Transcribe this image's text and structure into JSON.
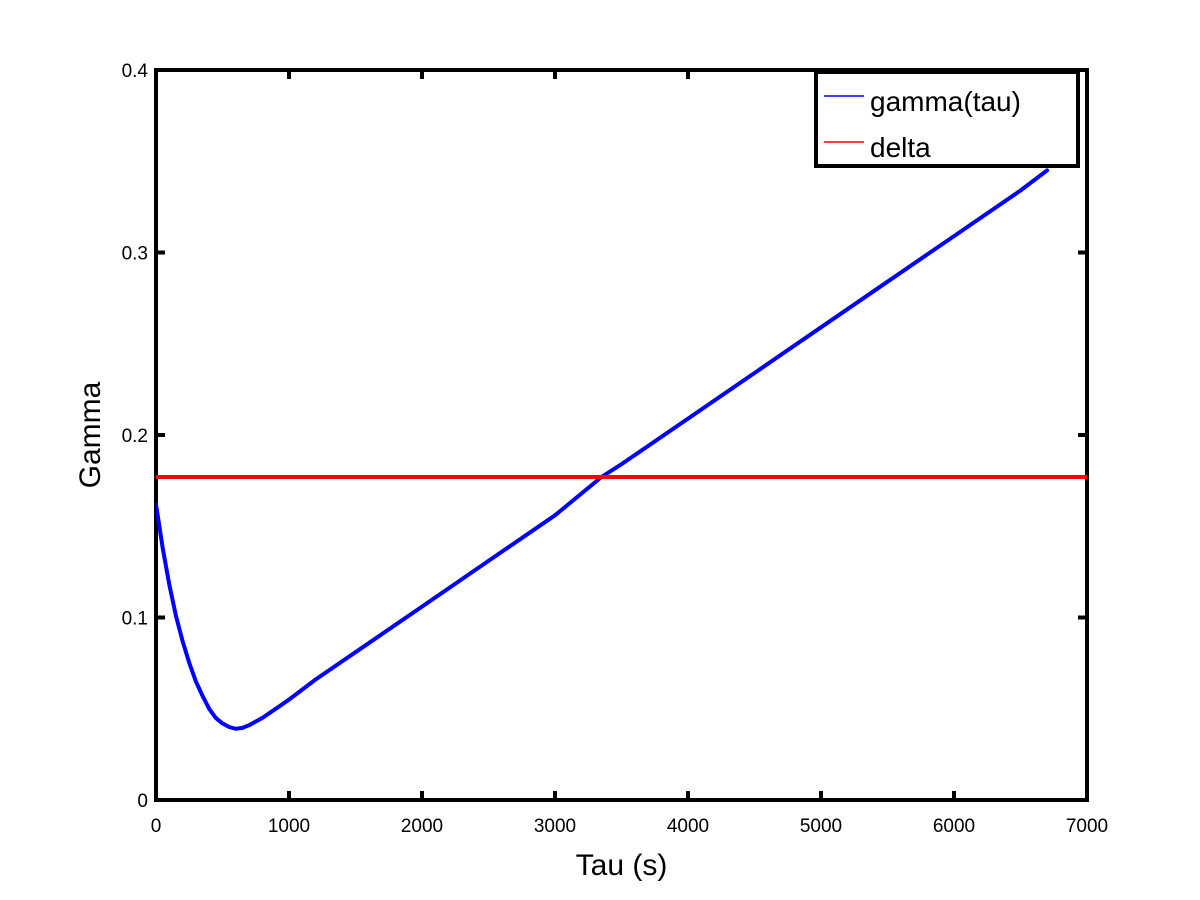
{
  "chart_data": {
    "type": "line",
    "title": "",
    "xlabel": "Tau (s)",
    "ylabel": "Gamma",
    "xlim": [
      0,
      7000
    ],
    "ylim": [
      0,
      0.4
    ],
    "xticks": [
      0,
      1000,
      2000,
      3000,
      4000,
      5000,
      6000,
      7000
    ],
    "yticks": [
      0,
      0.1,
      0.2,
      0.3,
      0.4
    ],
    "xtick_labels": [
      "0",
      "1000",
      "2000",
      "3000",
      "4000",
      "5000",
      "6000",
      "7000"
    ],
    "ytick_labels": [
      "0",
      "0.1",
      "0.2",
      "0.3",
      "0.4"
    ],
    "grid": false,
    "legend_position": "top-right",
    "series": [
      {
        "name": "gamma(tau)",
        "color": "#0000ff",
        "x": [
          0,
          50,
          100,
          150,
          200,
          250,
          300,
          350,
          400,
          450,
          500,
          550,
          600,
          650,
          700,
          800,
          900,
          1000,
          1200,
          1500,
          2000,
          2500,
          3000,
          3350,
          3500,
          4000,
          4500,
          5000,
          5500,
          6000,
          6500,
          6700
        ],
        "y": [
          0.162,
          0.138,
          0.118,
          0.101,
          0.087,
          0.075,
          0.065,
          0.057,
          0.05,
          0.045,
          0.042,
          0.04,
          0.039,
          0.0395,
          0.041,
          0.045,
          0.05,
          0.055,
          0.066,
          0.081,
          0.106,
          0.131,
          0.156,
          0.177,
          0.184,
          0.209,
          0.234,
          0.259,
          0.284,
          0.309,
          0.334,
          0.345
        ]
      },
      {
        "name": "delta",
        "color": "#ff0000",
        "x": [
          0,
          7000
        ],
        "y": [
          0.177,
          0.177
        ]
      }
    ]
  }
}
